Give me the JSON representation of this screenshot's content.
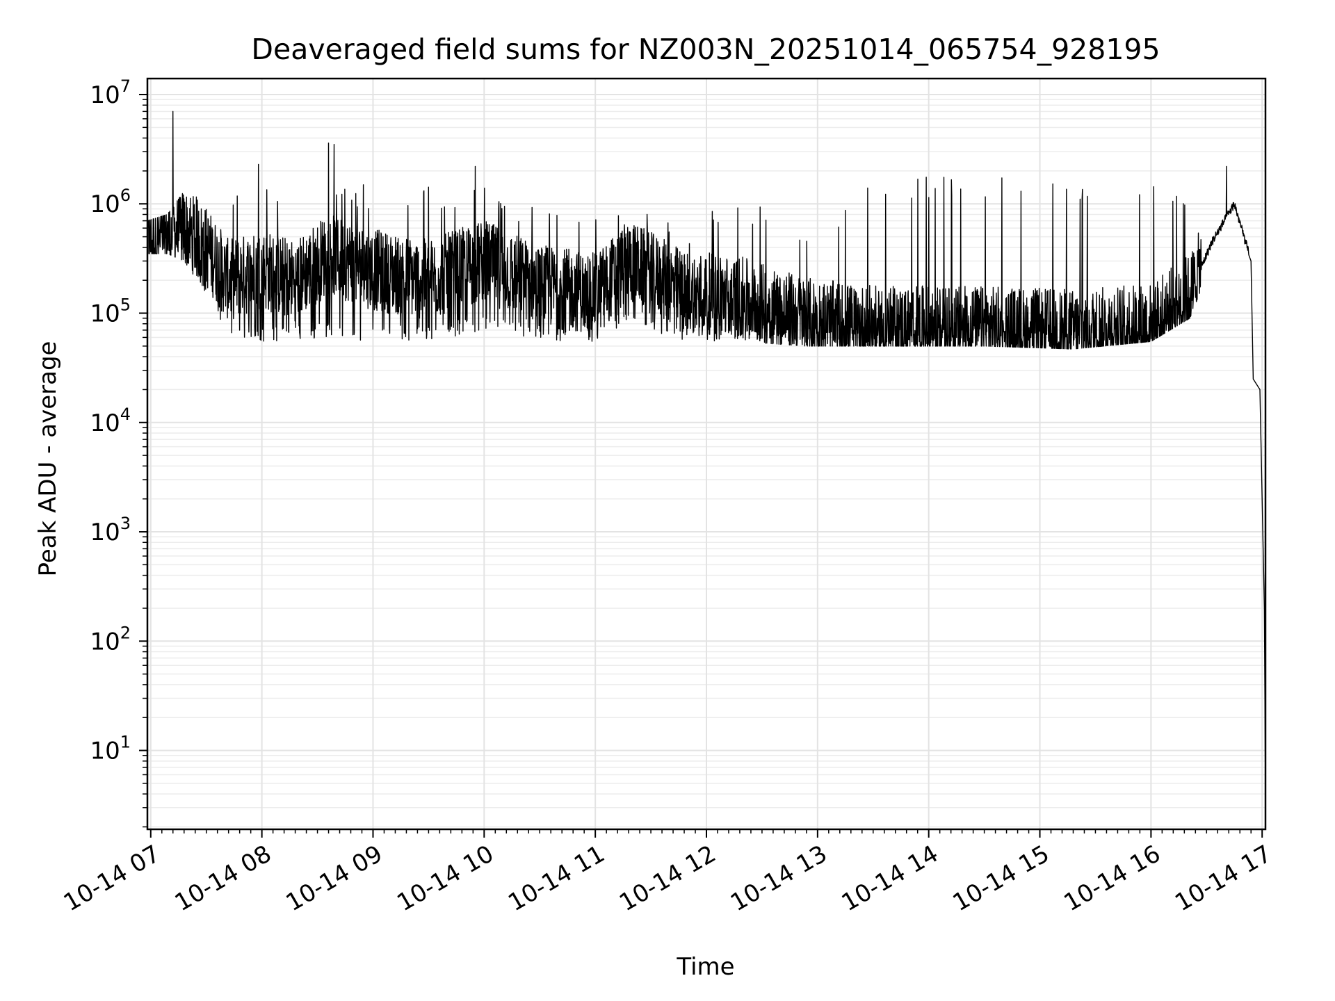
{
  "chart_data": {
    "type": "line",
    "title": "Deaveraged field sums for NZ003N_20251014_065754_928195",
    "xlabel": "Time",
    "ylabel": "Peak ADU - average",
    "yscale": "log",
    "ylim": [
      1.9,
      14000000
    ],
    "xlim_hours": [
      6.97,
      17.03
    ],
    "grid": true,
    "x_ticks": [
      {
        "hour": 7,
        "label": "10-14 07"
      },
      {
        "hour": 8,
        "label": "10-14 08"
      },
      {
        "hour": 9,
        "label": "10-14 09"
      },
      {
        "hour": 10,
        "label": "10-14 10"
      },
      {
        "hour": 11,
        "label": "10-14 11"
      },
      {
        "hour": 12,
        "label": "10-14 12"
      },
      {
        "hour": 13,
        "label": "10-14 13"
      },
      {
        "hour": 14,
        "label": "10-14 14"
      },
      {
        "hour": 15,
        "label": "10-14 15"
      },
      {
        "hour": 16,
        "label": "10-14 16"
      },
      {
        "hour": 17,
        "label": "10-14 17"
      }
    ],
    "y_ticks": [
      {
        "value": 10,
        "base": "10",
        "exp": "1"
      },
      {
        "value": 100,
        "base": "10",
        "exp": "2"
      },
      {
        "value": 1000,
        "base": "10",
        "exp": "3"
      },
      {
        "value": 10000,
        "base": "10",
        "exp": "4"
      },
      {
        "value": 100000,
        "base": "10",
        "exp": "5"
      },
      {
        "value": 1000000,
        "base": "10",
        "exp": "6"
      },
      {
        "value": 10000000,
        "base": "10",
        "exp": "7"
      }
    ],
    "series": [
      {
        "name": "deaveraged field sum",
        "envelope": [
          {
            "hour": 6.97,
            "base": 450000,
            "high": 700000,
            "low": 350000
          },
          {
            "hour": 7.15,
            "base": 500000,
            "high": 800000,
            "low": 350000
          },
          {
            "hour": 7.3,
            "base": 600000,
            "high": 1300000,
            "low": 300000
          },
          {
            "hour": 7.5,
            "base": 400000,
            "high": 1600000,
            "low": 150000
          },
          {
            "hour": 7.7,
            "base": 200000,
            "high": 1700000,
            "low": 60000
          },
          {
            "hour": 8.0,
            "base": 250000,
            "high": 1700000,
            "low": 55000
          },
          {
            "hour": 8.3,
            "base": 200000,
            "high": 1600000,
            "low": 55000
          },
          {
            "hour": 8.6,
            "base": 350000,
            "high": 1500000,
            "low": 60000
          },
          {
            "hour": 9.0,
            "base": 250000,
            "high": 1500000,
            "low": 55000
          },
          {
            "hour": 9.5,
            "base": 200000,
            "high": 1500000,
            "low": 55000
          },
          {
            "hour": 10.0,
            "base": 300000,
            "high": 1400000,
            "low": 70000
          },
          {
            "hour": 10.5,
            "base": 180000,
            "high": 900000,
            "low": 55000
          },
          {
            "hour": 11.0,
            "base": 150000,
            "high": 800000,
            "low": 55000
          },
          {
            "hour": 11.3,
            "base": 300000,
            "high": 900000,
            "low": 80000
          },
          {
            "hour": 11.8,
            "base": 160000,
            "high": 700000,
            "low": 55000
          },
          {
            "hour": 12.3,
            "base": 140000,
            "high": 1300000,
            "low": 55000
          },
          {
            "hour": 12.9,
            "base": 90000,
            "high": 600000,
            "low": 50000
          },
          {
            "hour": 13.5,
            "base": 75000,
            "high": 1800000,
            "low": 50000
          },
          {
            "hour": 14.5,
            "base": 75000,
            "high": 1800000,
            "low": 50000
          },
          {
            "hour": 15.3,
            "base": 70000,
            "high": 1700000,
            "low": 47000
          },
          {
            "hour": 16.0,
            "base": 80000,
            "high": 1600000,
            "low": 55000
          },
          {
            "hour": 16.35,
            "base": 150000,
            "high": 1200000,
            "low": 90000
          },
          {
            "hour": 16.55,
            "base": 450000,
            "high": 800000,
            "low": 300000
          },
          {
            "hour": 16.75,
            "base": 1000000,
            "high": 1100000,
            "low": 800000
          },
          {
            "hour": 16.9,
            "base": 300000,
            "high": 400000,
            "low": 200000
          },
          {
            "hour": 16.92,
            "base": 25000,
            "high": 30000,
            "low": 18000
          },
          {
            "hour": 16.98,
            "base": 20000,
            "high": 25000,
            "low": 15000
          },
          {
            "hour": 17.02,
            "base": 200,
            "high": 250,
            "low": 150
          },
          {
            "hour": 17.03,
            "base": 3.8,
            "high": 4,
            "low": 3.6
          }
        ],
        "spikes": [
          {
            "hour": 7.2,
            "value": 7000000
          },
          {
            "hour": 7.97,
            "value": 2300000
          },
          {
            "hour": 8.6,
            "value": 3600000
          },
          {
            "hour": 8.65,
            "value": 3500000
          },
          {
            "hour": 9.92,
            "value": 2200000
          },
          {
            "hour": 16.68,
            "value": 2200000
          }
        ]
      }
    ]
  }
}
